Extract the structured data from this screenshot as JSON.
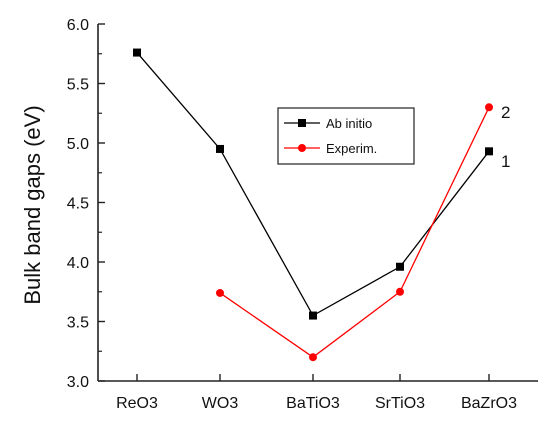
{
  "chart_data": {
    "type": "line",
    "categories": [
      "ReO3",
      "WO3",
      "BaTiO3",
      "SrTiO3",
      "BaZrO3"
    ],
    "ylabel": "Bulk band gaps (eV)",
    "xlabel": "",
    "ylim": [
      3.0,
      6.0
    ],
    "yticks": [
      "3.0",
      "3.5",
      "4.0",
      "4.5",
      "5.0",
      "5.5",
      "6.0"
    ],
    "grid": false,
    "legend_position": "center-right",
    "series": [
      {
        "name": "Ab initio",
        "color": "#000000",
        "marker": "square",
        "values": [
          5.76,
          4.95,
          3.55,
          3.96,
          4.93
        ]
      },
      {
        "name": "Experim.",
        "color": "#ff0000",
        "marker": "circle",
        "values": [
          null,
          3.74,
          3.2,
          3.75,
          5.3
        ]
      }
    ],
    "annotations": [
      {
        "text": "2",
        "category": "BaZrO3",
        "y": 5.26
      },
      {
        "text": "1",
        "category": "BaZrO3",
        "y": 4.85
      }
    ]
  }
}
